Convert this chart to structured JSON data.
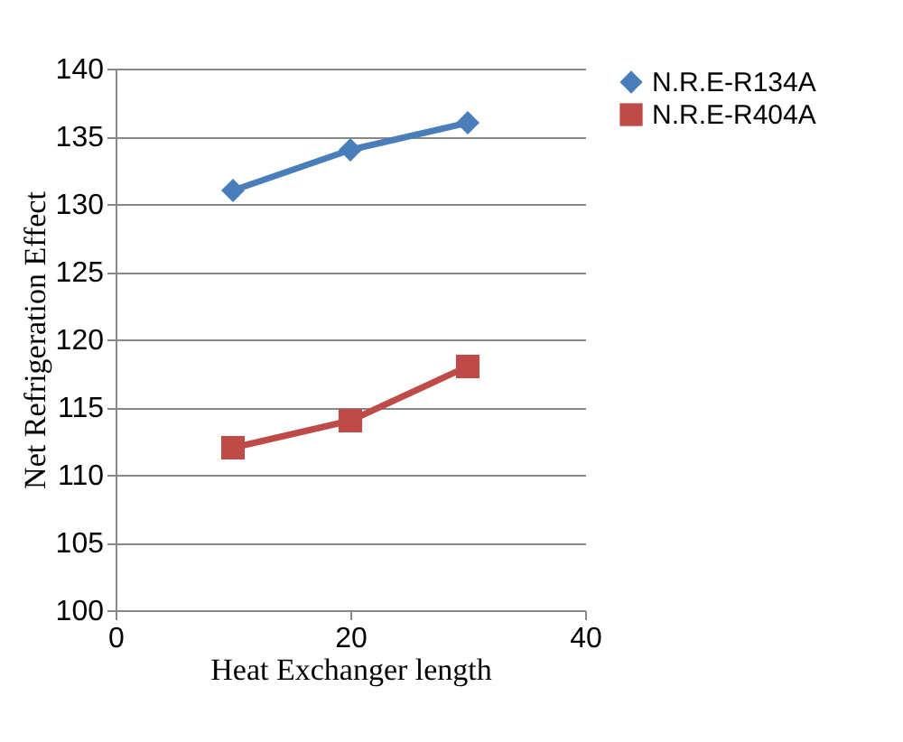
{
  "chart_data": {
    "type": "line",
    "xlabel": "Heat Exchanger length",
    "ylabel": "Net Refrigeration Effect",
    "x": [
      10,
      20,
      30
    ],
    "series": [
      {
        "name": "N.R.E-R134A",
        "color": "#4a7ebb",
        "marker": "diamond",
        "values": [
          131,
          134,
          136
        ]
      },
      {
        "name": "N.R.E-R404A",
        "color": "#be4b48",
        "marker": "square",
        "values": [
          112,
          114,
          118
        ]
      }
    ],
    "xlim": [
      0,
      40
    ],
    "xticks": [
      0,
      20,
      40
    ],
    "ylim": [
      100,
      140
    ],
    "yticks": [
      100,
      105,
      110,
      115,
      120,
      125,
      130,
      135,
      140
    ],
    "grid": "y",
    "legend": "right",
    "line_style": "solid"
  }
}
